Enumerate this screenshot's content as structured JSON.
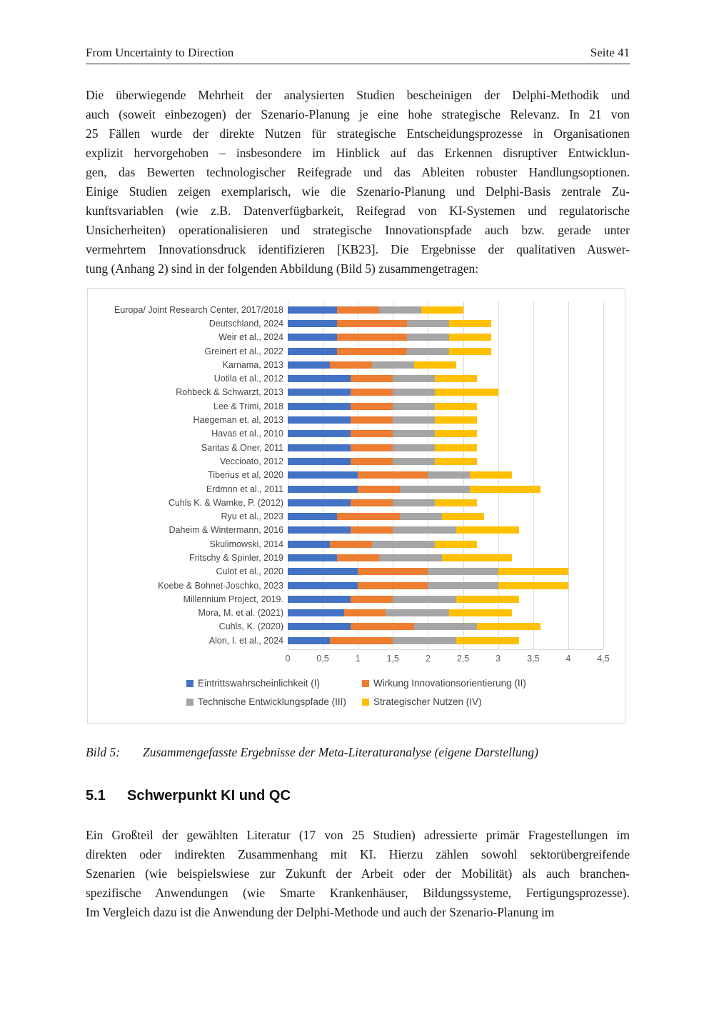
{
  "header": {
    "title": "From Uncertainty to Direction",
    "page_number": "Seite 41"
  },
  "paragraph1": {
    "lines": [
      "Die überwiegende Mehrheit der analysierten Studien bescheinigen der Delphi-Methodik und",
      "auch (soweit einbezogen) der Szenario-Planung je eine hohe strategische Relevanz. In 21 von",
      "25 Fällen wurde der direkte Nutzen für strategische Entscheidungsprozesse in Organisationen",
      "explizit hervorgehoben – insbesondere im Hinblick auf das Erkennen disruptiver Entwicklun-",
      "gen, das Bewerten technologischer Reifegrade und das Ableiten robuster Handlungsoptionen.",
      "Einige Studien zeigen exemplarisch, wie die Szenario-Planung und Delphi-Basis zentrale Zu-",
      "kunftsvariablen (wie z.B. Datenverfügbarkeit, Reifegrad von KI-Systemen und regulatorische",
      "Unsicherheiten) operationalisieren und strategische Innovationspfade auch bzw. gerade unter",
      "vermehrtem Innovationsdruck identifizieren [KB23]. Die Ergebnisse der qualitativen Auswer-",
      "tung (Anhang 2) sind in der folgenden Abbildung (Bild 5) zusammengetragen:"
    ]
  },
  "chart_data": {
    "type": "bar",
    "orientation": "horizontal",
    "stacked": true,
    "grid": true,
    "legend_position": "bottom",
    "xlim": [
      0,
      4.5
    ],
    "xticks": [
      "0",
      "0,5",
      "1",
      "1,5",
      "2",
      "2,5",
      "3",
      "3,5",
      "4",
      "4,5"
    ],
    "categories": [
      "Europa/ Joint Research Center, 2017/2018",
      "Deutschland, 2024",
      "Weir et al., 2024",
      "Greinert et al., 2022",
      "Karnama, 2013",
      "Uotila et al., 2012",
      "Rohbeck & Schwarzt, 2013",
      "Lee & Trimi, 2018",
      "Haegeman et. al, 2013",
      "Havas et al., 2010",
      "Saritas & Oner, 2011",
      "Veccioato, 2012",
      "Tiberius et al, 2020",
      "Erdmnn et al., 2011",
      "Cuhls K. & Wamke, P. (2012)",
      "Ryu et al., 2023",
      "Daheim & Wintermann, 2016",
      "Skulimowski, 2014",
      "Fritschy & Spinler, 2019",
      "Culot et al., 2020",
      "Koebe & Bohnet-Joschko, 2023",
      "Millennium Project, 2019.",
      "Mora, M. et al. (2021)",
      "Cuhls, K. (2020)",
      "Alon, I. et al., 2024"
    ],
    "series": [
      {
        "name": "Eintrittswahrscheinlichkeit (I)",
        "color": "#4472C4",
        "values": [
          0.7,
          0.7,
          0.7,
          0.7,
          0.6,
          0.9,
          0.9,
          0.9,
          0.9,
          0.9,
          0.9,
          0.9,
          1.0,
          1.0,
          0.9,
          0.7,
          0.9,
          0.6,
          0.7,
          1.0,
          1.0,
          0.9,
          0.8,
          0.9,
          0.6
        ]
      },
      {
        "name": "Wirkung Innovationsorientierung (II)",
        "color": "#ED7D31",
        "values": [
          0.6,
          1.0,
          1.0,
          1.0,
          0.6,
          0.6,
          0.6,
          0.6,
          0.6,
          0.6,
          0.6,
          0.6,
          1.0,
          0.6,
          0.6,
          0.9,
          0.6,
          0.6,
          0.6,
          1.0,
          1.0,
          0.6,
          0.6,
          0.9,
          0.9
        ]
      },
      {
        "name": "Technische Entwicklungspfade (III)",
        "color": "#A5A5A5",
        "values": [
          0.6,
          0.6,
          0.6,
          0.6,
          0.6,
          0.6,
          0.6,
          0.6,
          0.6,
          0.6,
          0.6,
          0.6,
          0.6,
          1.0,
          0.6,
          0.6,
          0.9,
          0.9,
          0.9,
          1.0,
          1.0,
          0.9,
          0.9,
          0.9,
          0.9
        ]
      },
      {
        "name": "Strategischer Nutzen (IV)",
        "color": "#FFC000",
        "values": [
          0.6,
          0.6,
          0.6,
          0.6,
          0.6,
          0.6,
          0.9,
          0.6,
          0.6,
          0.6,
          0.6,
          0.6,
          0.6,
          1.0,
          0.6,
          0.6,
          0.9,
          0.6,
          1.0,
          1.0,
          1.0,
          0.9,
          0.9,
          0.9,
          0.9
        ]
      }
    ]
  },
  "caption": {
    "label": "Bild 5:",
    "text": "Zusammengefasste Ergebnisse der Meta-Literaturanalyse (eigene Darstellung)"
  },
  "section": {
    "number": "5.1",
    "title": "Schwerpunkt KI und QC"
  },
  "paragraph2": {
    "lines": [
      "Ein Großteil der gewählten Literatur (17 von 25 Studien) adressierte primär Fragestellungen im",
      "direkten oder indirekten Zusammenhang mit KI. Hierzu zählen sowohl sektorübergreifende",
      "Szenarien (wie beispielswiese zur Zukunft der Arbeit oder der Mobilität) als auch branchen-",
      "spezifische Anwendungen (wie Smarte Krankenhäuser, Bildungssysteme, Fertigungsprozesse).",
      "Im Vergleich dazu ist die Anwendung der Delphi-Methode und auch der Szenario-Planung im"
    ]
  }
}
